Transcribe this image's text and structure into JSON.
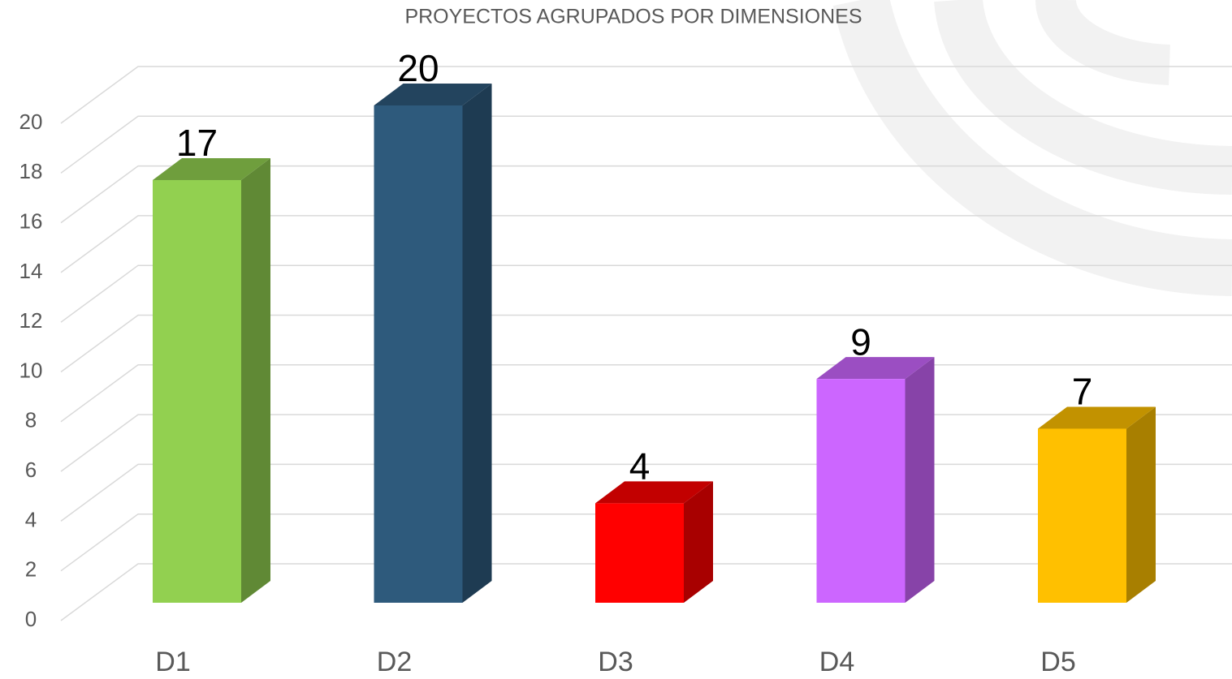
{
  "chart_data": {
    "type": "bar3d",
    "title": "PROYECTOS AGRUPADOS POR DIMENSIONES",
    "categories": [
      "D1",
      "D2",
      "D3",
      "D4",
      "D5"
    ],
    "values": [
      17,
      20,
      4,
      9,
      7
    ],
    "colors": [
      "#92d050",
      "#2e5a7c",
      "#ff0000",
      "#cc66ff",
      "#ffc000"
    ],
    "ylim": [
      0,
      20
    ],
    "yticks": [
      0,
      2,
      4,
      6,
      8,
      10,
      12,
      14,
      16,
      18,
      20
    ],
    "grid": true
  }
}
